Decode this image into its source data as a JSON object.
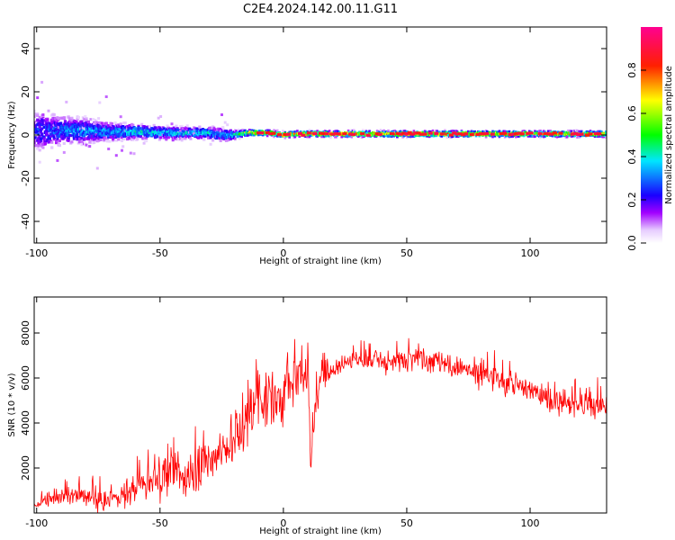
{
  "figure_title": "C2E4.2024.142.00.11.G11",
  "chart_data": [
    {
      "type": "heatmap",
      "title": "C2E4.2024.142.00.11.G11",
      "xlabel": "Height of straight line (km)",
      "ylabel": "Frequency (Hz)",
      "xlim": [
        -101,
        131
      ],
      "ylim": [
        -50,
        50
      ],
      "x_ticks": [
        -100,
        -50,
        0,
        50,
        100
      ],
      "y_ticks": [
        -40,
        -20,
        0,
        20,
        40
      ],
      "colorbar": {
        "label": "Normalized spectral amplitude",
        "range": [
          0,
          1
        ],
        "ticks": [
          0.0,
          0.2,
          0.4,
          0.6,
          0.8
        ],
        "tick_labels": [
          "0.0",
          "0.2",
          "0.4",
          "0.6",
          "0.8"
        ],
        "colormap": [
          "#ffffff",
          "#b000ff",
          "#1a00ff",
          "#00ffff",
          "#00ff00",
          "#ffff00",
          "#ff0000",
          "#ff00a0"
        ]
      },
      "ridge": {
        "x": [
          -100,
          -90,
          -80,
          -70,
          -60,
          -50,
          -40,
          -30,
          -25,
          -20,
          -15,
          -10,
          -5,
          0,
          5,
          10,
          20,
          30,
          40,
          50,
          60,
          70,
          80,
          90,
          100,
          110,
          120,
          130
        ],
        "center_hz": [
          2,
          2,
          2,
          1.5,
          1.5,
          1,
          1,
          1,
          0,
          0,
          1,
          1,
          1,
          0,
          0.5,
          0.5,
          0.5,
          0.5,
          0.5,
          0.5,
          0.5,
          0.5,
          0.5,
          0.5,
          0.5,
          0.5,
          0.5,
          0.5
        ],
        "spread_hz": [
          14,
          10,
          8,
          6,
          5,
          4.5,
          4,
          4,
          5,
          3,
          2,
          2,
          2,
          2,
          2,
          2,
          2,
          2,
          2,
          2,
          2,
          2,
          2,
          2,
          2,
          2,
          2,
          2
        ],
        "peak_amplitude": [
          0.3,
          0.35,
          0.4,
          0.4,
          0.45,
          0.45,
          0.45,
          0.45,
          0.4,
          0.5,
          0.8,
          0.85,
          0.8,
          0.9,
          0.8,
          0.85,
          0.85,
          0.85,
          0.9,
          0.9,
          0.85,
          0.9,
          0.85,
          0.85,
          0.8,
          0.8,
          0.8,
          0.8
        ]
      }
    },
    {
      "type": "line",
      "xlabel": "Height of straight line (km)",
      "ylabel": "SNR (10 * v/v)",
      "xlim": [
        -101,
        131
      ],
      "ylim": [
        0,
        9600
      ],
      "x_ticks": [
        -100,
        -50,
        0,
        50,
        100
      ],
      "y_ticks": [
        2000,
        4000,
        6000,
        8000
      ],
      "line_color": "#ff0000",
      "series": [
        {
          "x": [
            -101,
            -95,
            -90,
            -85,
            -80,
            -75,
            -70,
            -65,
            -60,
            -55,
            -50,
            -45,
            -40,
            -35,
            -30,
            -25,
            -22,
            -20,
            -17,
            -15,
            -13,
            -11,
            -8,
            -5,
            -2,
            0,
            3,
            5,
            8,
            10,
            11,
            12,
            13,
            15,
            20,
            25,
            30,
            35,
            40,
            45,
            50,
            55,
            60,
            65,
            70,
            75,
            80,
            85,
            90,
            95,
            100,
            105,
            110,
            115,
            120,
            125,
            131
          ],
          "y": [
            300,
            600,
            700,
            800,
            700,
            500,
            600,
            800,
            1100,
            1300,
            1500,
            1700,
            1600,
            1800,
            2200,
            2800,
            3000,
            3200,
            3800,
            4200,
            4600,
            5500,
            5200,
            4800,
            5000,
            5200,
            5600,
            5800,
            6000,
            6200,
            2000,
            3500,
            5000,
            5800,
            6400,
            6700,
            6800,
            6800,
            6800,
            6700,
            6900,
            7000,
            6800,
            6600,
            6500,
            6300,
            6000,
            6000,
            5800,
            5600,
            5400,
            5200,
            5000,
            4800,
            4800,
            4700,
            4600
          ],
          "noise": [
            200,
            500,
            600,
            700,
            700,
            700,
            700,
            900,
            1100,
            1200,
            1300,
            1300,
            1300,
            1400,
            1600,
            1800,
            2000,
            2200,
            2500,
            2500,
            2500,
            2500,
            2200,
            2000,
            2000,
            2000,
            1800,
            1700,
            1500,
            1500,
            800,
            1000,
            1200,
            1000,
            900,
            800,
            700,
            700,
            700,
            700,
            800,
            900,
            900,
            900,
            900,
            900,
            900,
            900,
            900,
            900,
            900,
            900,
            900,
            900,
            900,
            900,
            900
          ]
        }
      ]
    }
  ]
}
